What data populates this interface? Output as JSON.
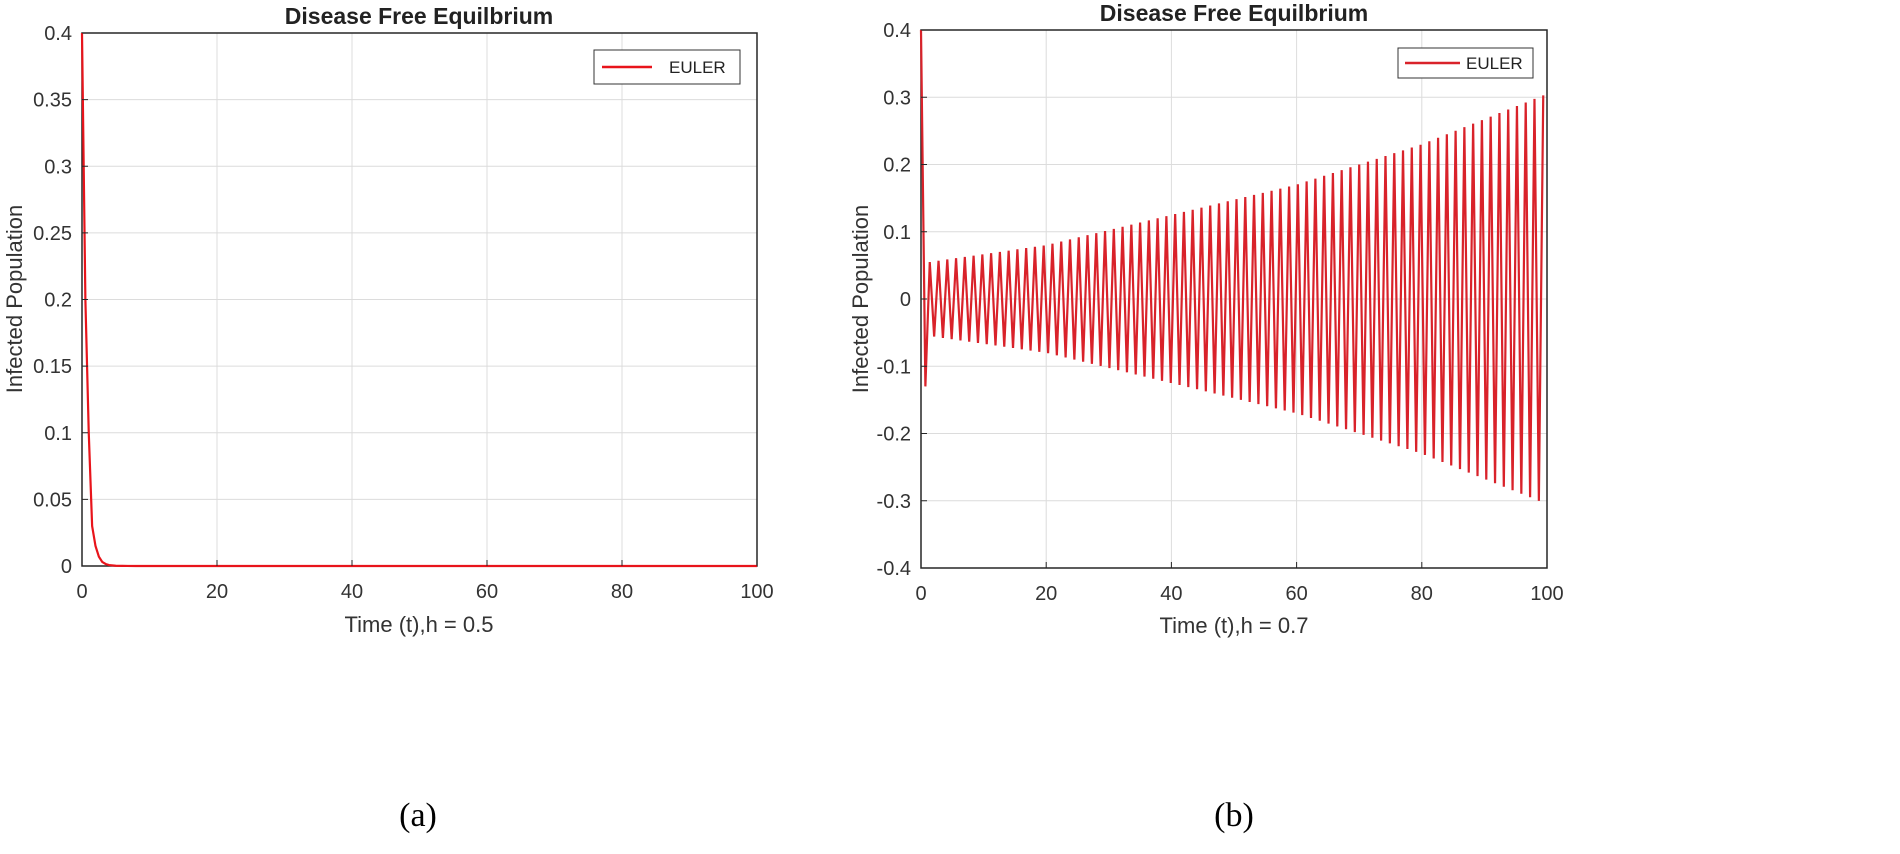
{
  "chart_data": [
    {
      "type": "line",
      "panel_label": "(a)",
      "title": "Disease Free Equilbrium",
      "xlabel": "Time (t),h = 0.5",
      "ylabel": "Infected Population",
      "xlim": [
        0,
        100
      ],
      "ylim": [
        0,
        0.4
      ],
      "xticks": [
        "0",
        "20",
        "40",
        "60",
        "80",
        "100"
      ],
      "yticks": [
        "0",
        "0.05",
        "0.1",
        "0.15",
        "0.2",
        "0.25",
        "0.3",
        "0.35",
        "0.4"
      ],
      "grid": true,
      "legend_position": "top-right",
      "series": [
        {
          "name": "EULER",
          "color": "#e8141b",
          "x": [
            0,
            0.5,
            1,
            1.5,
            2,
            2.5,
            3,
            3.5,
            4,
            5,
            6,
            8,
            10,
            20,
            40,
            60,
            80,
            100
          ],
          "y": [
            0.4,
            0.2,
            0.1,
            0.03,
            0.015,
            0.007,
            0.003,
            0.0015,
            0.0007,
            0.0002,
            0.0001,
            0,
            0,
            0,
            0,
            0,
            0,
            0
          ]
        }
      ]
    },
    {
      "type": "line",
      "panel_label": "(b)",
      "title": "Disease Free Equilbrium",
      "xlabel": "Time (t),h = 0.7",
      "ylabel": "Infected Population",
      "xlim": [
        0,
        100
      ],
      "ylim": [
        -0.4,
        0.4
      ],
      "xticks": [
        "0",
        "20",
        "40",
        "60",
        "80",
        "100"
      ],
      "yticks": [
        "-0.4",
        "-0.3",
        "-0.2",
        "-0.1",
        "0",
        "0.1",
        "0.2",
        "0.3",
        "0.4"
      ],
      "grid": true,
      "legend_position": "top-right",
      "series": [
        {
          "name": "EULER",
          "color": "#d9222a",
          "oscillation": {
            "start_value": 0.4,
            "first_min": -0.13,
            "step": 0.7,
            "envelope_x": [
              1.4,
              20,
              40,
              60,
              80,
              100
            ],
            "envelope_amp": [
              0.055,
              0.08,
              0.125,
              0.17,
              0.23,
              0.305
            ]
          }
        }
      ]
    }
  ]
}
